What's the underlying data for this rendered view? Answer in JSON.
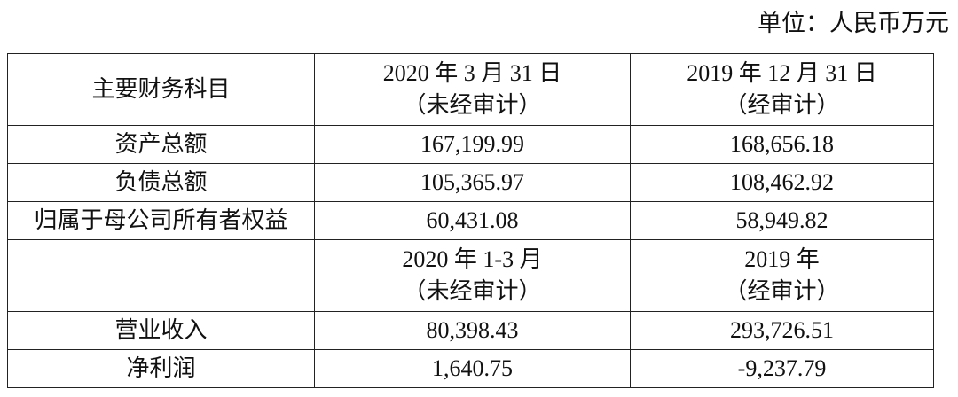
{
  "unit_label": "单位：人民币万元",
  "header": {
    "col1": "主要财务科目",
    "col2_line1": "2020 年 3 月 31 日",
    "col2_line2": "（未经审计）",
    "col3_line1": "2019 年 12 月 31 日",
    "col3_line2": "（经审计）"
  },
  "balance_rows": [
    {
      "label": "资产总额",
      "v2020": "167,199.99",
      "v2019": "168,656.18"
    },
    {
      "label": "负债总额",
      "v2020": "105,365.97",
      "v2019": "108,462.92"
    },
    {
      "label": "归属于母公司所有者权益",
      "v2020": "60,431.08",
      "v2019": "58,949.82"
    }
  ],
  "subheader": {
    "col1": "",
    "col2_line1": "2020 年 1-3 月",
    "col2_line2": "（未经审计）",
    "col3_line1": "2019 年",
    "col3_line2": "（经审计）"
  },
  "income_rows": [
    {
      "label": "营业收入",
      "v2020": "80,398.43",
      "v2019": "293,726.51"
    },
    {
      "label": "净利润",
      "v2020": "1,640.75",
      "v2019": "-9,237.79"
    }
  ]
}
